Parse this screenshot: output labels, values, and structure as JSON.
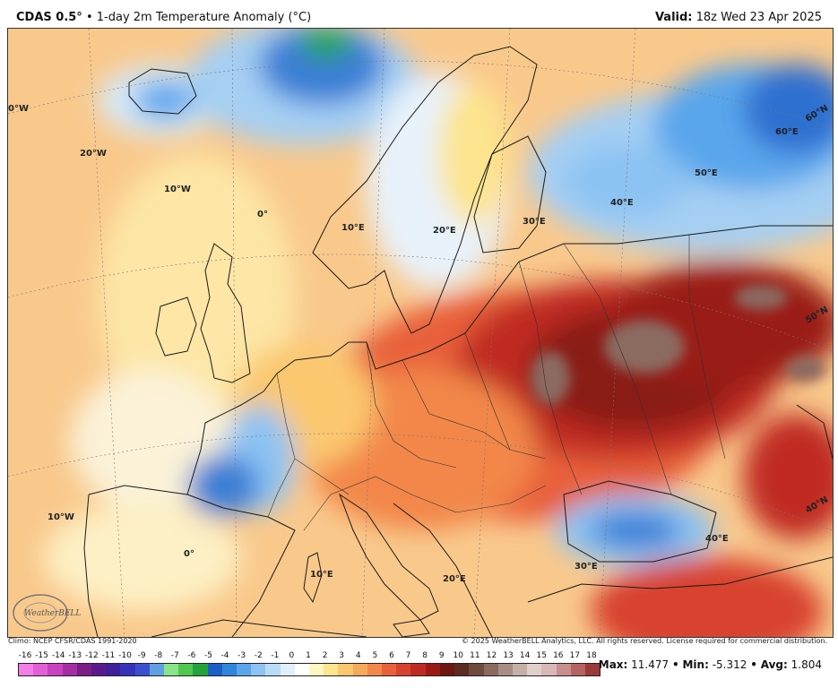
{
  "header": {
    "product": "CDAS 0.5°",
    "separator": "•",
    "field": "1-day 2m Temperature Anomaly (°C)",
    "valid_label": "Valid:",
    "valid_value": "18z Wed 23 Apr 2025"
  },
  "map": {
    "labels": {
      "lon_0w": "0°W",
      "lon_20w": "20°W",
      "lon_10w_north": "10°W",
      "lon_0_north": "0°",
      "lon_10e_north": "10°E",
      "lon_20e_north": "20°E",
      "lon_30e_north": "30°E",
      "lon_40e_north": "40°E",
      "lon_50e": "50°E",
      "lon_60e": "60°E",
      "lat_60n": "60°N",
      "lat_50n": "50°N",
      "lat_40n": "40°N",
      "lon_10w_south": "10°W",
      "lon_0_south": "0°",
      "lon_10e_south": "10°E",
      "lon_20e_south": "20°E",
      "lon_30e_south": "30°E",
      "lon_40e_south": "40°E"
    },
    "logo": "WeatherBELL"
  },
  "footer": {
    "climo": "Climo: NCEP CFSR/CDAS 1991-2020",
    "copyright": "© 2025 WeatherBELL Analytics, LLC. All rights reserved. License required for commercial distribution."
  },
  "legend": {
    "ticks": [
      "-16",
      "-15",
      "-14",
      "-13",
      "-12",
      "-11",
      "-10",
      "-9",
      "-8",
      "-7",
      "-6",
      "-5",
      "-4",
      "-3",
      "-2",
      "-1",
      "0",
      "1",
      "2",
      "3",
      "4",
      "5",
      "6",
      "7",
      "8",
      "9",
      "10",
      "11",
      "12",
      "13",
      "14",
      "15",
      "16",
      "17",
      "18"
    ],
    "colors": [
      "#f47ee8",
      "#e35fd6",
      "#c942c0",
      "#a52ea6",
      "#7b1e86",
      "#5b1a8c",
      "#3f1f9c",
      "#3534b8",
      "#3b4fd0",
      "#5ea0e0",
      "#89e389",
      "#4fc84f",
      "#22a43a",
      "#1c5fc7",
      "#2f86dd",
      "#5aa6ec",
      "#8cc3f3",
      "#b8dcf8",
      "#e1effc",
      "#ffffff",
      "#fff6c2",
      "#fde48e",
      "#fbc86f",
      "#f7a95a",
      "#f2874a",
      "#e8613a",
      "#d8432d",
      "#c02a22",
      "#9a1a16",
      "#6e1610",
      "#5a2c22",
      "#6f4a3e",
      "#8b6b60",
      "#a88d84",
      "#c5b0a8",
      "#dfd0cb",
      "#d9b8b8",
      "#c98f8f",
      "#b56363",
      "#9b3a3a"
    ]
  },
  "stats": {
    "max_label": "Max:",
    "max_value": "11.477",
    "min_label": "Min:",
    "min_value": "-5.312",
    "avg_label": "Avg:",
    "avg_value": "1.804",
    "sep": "•"
  }
}
